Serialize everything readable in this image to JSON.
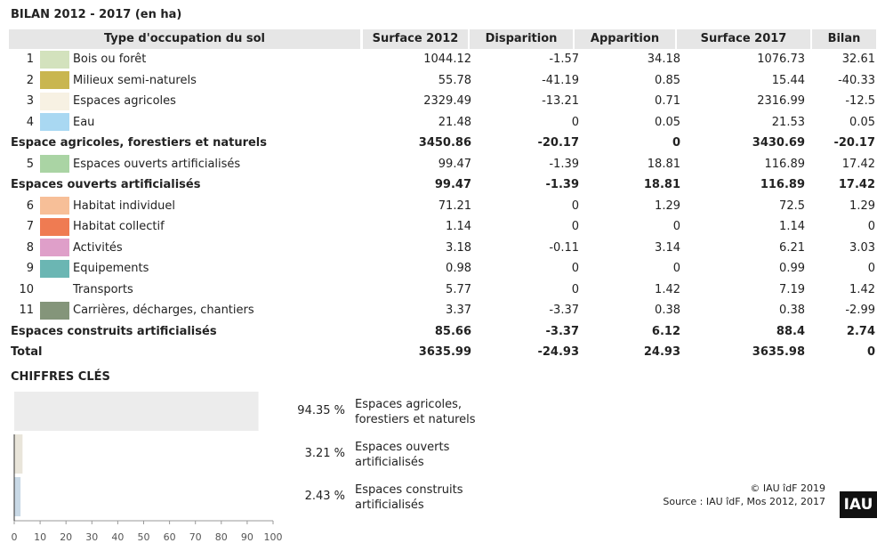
{
  "title": "BILAN 2012 - 2017 (en ha)",
  "table": {
    "headers": [
      "Type d'occupation du sol",
      "Surface 2012",
      "Disparition",
      "Apparition",
      "Surface 2017",
      "Bilan"
    ],
    "rows": [
      {
        "num": 1,
        "color": "#d3e2bd",
        "label": "Bois ou forêt",
        "cells": [
          1044.12,
          -1.57,
          34.18,
          1076.73,
          32.61
        ]
      },
      {
        "num": 2,
        "color": "#c9b650",
        "label": "Milieux semi-naturels",
        "cells": [
          55.78,
          -41.19,
          0.85,
          15.44,
          -40.33
        ]
      },
      {
        "num": 3,
        "color": "#f7f1e3",
        "label": "Espaces agricoles",
        "cells": [
          2329.49,
          -13.21,
          0.71,
          2316.99,
          -12.5
        ]
      },
      {
        "num": 4,
        "color": "#a9d8f2",
        "label": "Eau",
        "cells": [
          21.48,
          0,
          0.05,
          21.53,
          0.05
        ]
      },
      {
        "label": "Espace agricoles, forestiers et naturels",
        "total": true,
        "cells": [
          3450.86,
          -20.17,
          0,
          3430.69,
          -20.17
        ]
      },
      {
        "num": 5,
        "color": "#aad4a4",
        "label": "Espaces ouverts artificialisés",
        "cells": [
          99.47,
          -1.39,
          18.81,
          116.89,
          17.42
        ]
      },
      {
        "label": "Espaces ouverts artificialisés",
        "total": true,
        "cells": [
          99.47,
          -1.39,
          18.81,
          116.89,
          17.42
        ]
      },
      {
        "num": 6,
        "color": "#f7bf98",
        "label": "Habitat individuel",
        "cells": [
          71.21,
          0,
          1.29,
          72.5,
          1.29
        ]
      },
      {
        "num": 7,
        "color": "#ef7b52",
        "label": "Habitat collectif",
        "cells": [
          1.14,
          0,
          0,
          1.14,
          0
        ]
      },
      {
        "num": 8,
        "color": "#df9fc9",
        "label": "Activités",
        "cells": [
          3.18,
          -0.11,
          3.14,
          6.21,
          3.03
        ]
      },
      {
        "num": 9,
        "color": "#6bb6b3",
        "label": "Equipements",
        "cells": [
          0.98,
          0,
          0,
          0.99,
          0
        ]
      },
      {
        "num": 10,
        "label": "Transports",
        "cells": [
          5.77,
          0,
          1.42,
          7.19,
          1.42
        ]
      },
      {
        "num": 11,
        "color": "#84957a",
        "label": "Carrières, décharges, chantiers",
        "cells": [
          3.37,
          -3.37,
          0.38,
          0.38,
          -2.99
        ]
      },
      {
        "label": "Espaces construits artificialisés",
        "total": true,
        "cells": [
          85.66,
          -3.37,
          6.12,
          88.4,
          2.74
        ]
      },
      {
        "label": "Total",
        "total": true,
        "cells": [
          3635.99,
          -24.93,
          24.93,
          3635.98,
          0
        ]
      }
    ]
  },
  "key_figures": {
    "title": "CHIFFRES CLÉS",
    "chart_data": {
      "type": "bar",
      "orientation": "horizontal",
      "categories": [
        "Espaces agricoles, forestiers et naturels",
        "Espaces ouverts artificialisés",
        "Espaces construits artificialisés"
      ],
      "values": [
        94.35,
        3.21,
        2.43
      ],
      "value_labels": [
        "94.35 %",
        "3.21 %",
        "2.43 %"
      ],
      "colors": [
        "#ececec",
        "#e9e5da",
        "#c9d9e6"
      ],
      "xlim": [
        0,
        100
      ],
      "xticks": [
        0,
        10,
        20,
        30,
        40,
        50,
        60,
        70,
        80,
        90,
        100
      ]
    }
  },
  "footer": {
    "copyright": "© IAU îdF 2019",
    "source": "Source : IAU îdF, Mos 2012, 2017",
    "logo": "IAU"
  }
}
